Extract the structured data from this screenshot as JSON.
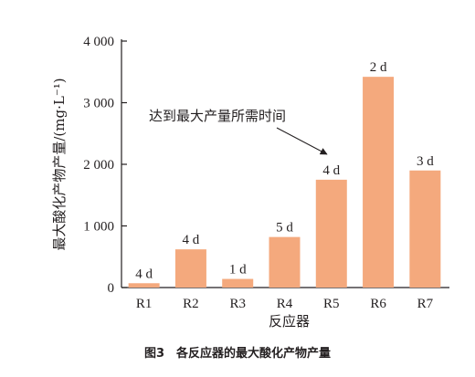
{
  "figure": {
    "caption": "图3　各反应器的最大酸化产物产量"
  },
  "chart_data": {
    "type": "bar",
    "categories": [
      "R1",
      "R2",
      "R3",
      "R4",
      "R5",
      "R6",
      "R7"
    ],
    "values": [
      70,
      620,
      140,
      820,
      1750,
      3420,
      1900
    ],
    "data_labels": [
      "4 d",
      "4 d",
      "1 d",
      "5 d",
      "4 d",
      "2 d",
      "3 d"
    ],
    "xlabel": "反应器",
    "ylabel": "最大酸化产物产量/(mg·L⁻¹)",
    "ylim": [
      0,
      4000
    ],
    "yticks": [
      0,
      1000,
      2000,
      3000,
      4000
    ],
    "ytick_labels": [
      "0",
      "1 000",
      "2 000",
      "3 000",
      "4 000"
    ],
    "annotation": {
      "text": "达到最大产量所需时间",
      "target_category": "R5"
    },
    "bar_color": "#f4a97d",
    "axis_color": "#231f20",
    "grid": false,
    "legend": "none"
  }
}
